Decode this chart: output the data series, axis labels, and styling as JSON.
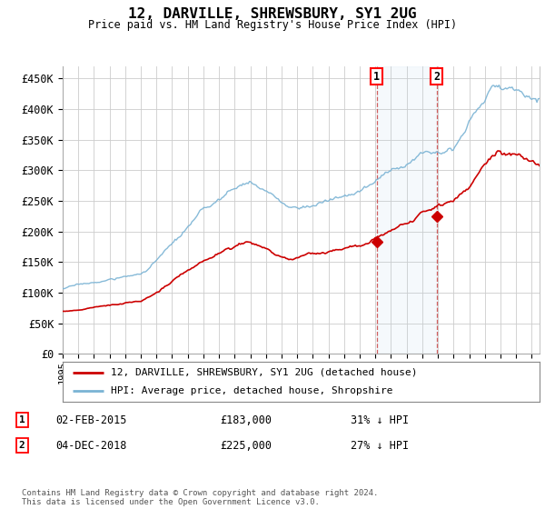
{
  "title": "12, DARVILLE, SHREWSBURY, SY1 2UG",
  "subtitle": "Price paid vs. HM Land Registry's House Price Index (HPI)",
  "ylim": [
    0,
    470000
  ],
  "xlim_start": 1995.0,
  "xlim_end": 2025.5,
  "hpi_color": "#7ab3d4",
  "price_color": "#cc0000",
  "sale1_date": "02-FEB-2015",
  "sale1_price": 183000,
  "sale1_pct": "31%",
  "sale2_date": "04-DEC-2018",
  "sale2_price": 225000,
  "sale2_pct": "27%",
  "legend_label1": "12, DARVILLE, SHREWSBURY, SY1 2UG (detached house)",
  "legend_label2": "HPI: Average price, detached house, Shropshire",
  "footnote": "Contains HM Land Registry data © Crown copyright and database right 2024.\nThis data is licensed under the Open Government Licence v3.0.",
  "bg_color": "#ffffff",
  "grid_color": "#cccccc",
  "sale1_x": 2015.08,
  "sale2_x": 2018.92
}
